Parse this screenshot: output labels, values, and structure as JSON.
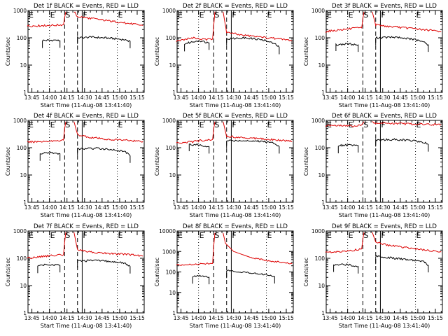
{
  "colors": {
    "events": "#000000",
    "lld": "#dd0000",
    "axes": "#000000",
    "background": "#ffffff"
  },
  "chart_data": [
    {
      "type": "line",
      "title": "Det 1f BLACK = Events, RED = LLD",
      "xlabel": "Start Time (11-Aug-08 13:41:40)",
      "ylabel": "Counts/sec",
      "yscale": "log",
      "ylim": [
        1,
        1000
      ],
      "x_ticks": [
        "13:45",
        "14:00",
        "14:15",
        "14:30",
        "14:45",
        "15:00",
        "15:15"
      ],
      "y_ticks": [
        "1",
        "10",
        "100",
        "1000"
      ],
      "markers": [
        {
          "label": "E"
        },
        {
          "label": "S"
        },
        {
          "label": "F"
        },
        {
          "label": "E"
        }
      ],
      "series": [
        {
          "name": "BLACK = Events",
          "segments": [
            {
              "x": [
                "13:54",
                "14:05",
                "14:09"
              ],
              "y": [
                80,
                82,
                78
              ]
            },
            {
              "x": [
                "14:24",
                "14:36",
                "14:50",
                "15:05",
                "15:09"
              ],
              "y": [
                100,
                105,
                98,
                85,
                75
              ]
            }
          ]
        },
        {
          "name": "RED = LLD",
          "segments": [
            {
              "x": [
                "13:41",
                "13:55",
                "14:05",
                "14:12",
                "14:13",
                "14:14"
              ],
              "y": [
                270,
                280,
                290,
                300,
                600,
                900
              ]
            },
            {
              "x": [
                "14:21",
                "14:24",
                "14:35",
                "14:50",
                "15:05",
                "15:20"
              ],
              "y": [
                900,
                600,
                520,
                420,
                350,
                280
              ]
            }
          ]
        }
      ]
    },
    {
      "type": "line",
      "title": "Det 2f BLACK = Events, RED = LLD",
      "xlabel": "Start Time (11-Aug-08 13:41:40)",
      "ylabel": "Counts/sec",
      "yscale": "log",
      "ylim": [
        1,
        1000
      ],
      "x_ticks": [
        "13:45",
        "14:00",
        "14:15",
        "14:30",
        "14:45",
        "15:00",
        "15:15"
      ],
      "y_ticks": [
        "1",
        "10",
        "100",
        "1000"
      ],
      "markers": [
        {
          "label": "E"
        },
        {
          "label": "S"
        },
        {
          "label": "F"
        },
        {
          "label": "E"
        }
      ],
      "series": [
        {
          "name": "BLACK = Events",
          "segments": [
            {
              "x": [
                "13:48",
                "14:00",
                "14:09"
              ],
              "y": [
                60,
                80,
                65
              ]
            },
            {
              "x": [
                "14:24",
                "14:40",
                "14:55",
                "15:05",
                "15:09"
              ],
              "y": [
                90,
                100,
                85,
                60,
                45
              ]
            }
          ]
        },
        {
          "name": "RED = LLD",
          "segments": [
            {
              "x": [
                "13:41",
                "13:55",
                "14:05",
                "14:12",
                "14:13",
                "14:14"
              ],
              "y": [
                75,
                100,
                85,
                90,
                300,
                900
              ]
            },
            {
              "x": [
                "14:21",
                "14:24",
                "14:35",
                "14:50",
                "15:05",
                "15:20"
              ],
              "y": [
                900,
                160,
                130,
                110,
                95,
                80
              ]
            }
          ]
        }
      ]
    },
    {
      "type": "line",
      "title": "Det 3f BLACK = Events, RED = LLD",
      "xlabel": "Start Time (11-Aug-08 13:41:40)",
      "ylabel": "Counts/sec",
      "yscale": "log",
      "ylim": [
        1,
        1000
      ],
      "x_ticks": [
        "13:45",
        "14:00",
        "14:15",
        "14:30",
        "14:45",
        "15:00",
        "15:15"
      ],
      "y_ticks": [
        "1",
        "10",
        "100",
        "1000"
      ],
      "markers": [
        {
          "label": "E"
        },
        {
          "label": "S"
        },
        {
          "label": "F"
        },
        {
          "label": "E"
        }
      ],
      "series": [
        {
          "name": "BLACK = Events",
          "segments": [
            {
              "x": [
                "13:50",
                "14:00",
                "14:09"
              ],
              "y": [
                55,
                60,
                55
              ]
            },
            {
              "x": [
                "14:24",
                "14:40",
                "14:55",
                "15:05",
                "15:09"
              ],
              "y": [
                100,
                105,
                90,
                70,
                55
              ]
            }
          ]
        },
        {
          "name": "RED = LLD",
          "segments": [
            {
              "x": [
                "13:41",
                "13:55",
                "14:05",
                "14:12",
                "14:13",
                "14:14"
              ],
              "y": [
                170,
                200,
                220,
                230,
                500,
                900
              ]
            },
            {
              "x": [
                "14:21",
                "14:24",
                "14:35",
                "14:50",
                "15:05",
                "15:20"
              ],
              "y": [
                900,
                300,
                260,
                230,
                200,
                170
              ]
            }
          ]
        }
      ]
    },
    {
      "type": "line",
      "title": "Det 4f BLACK = Events, RED = LLD",
      "xlabel": "Start Time (11-Aug-08 13:41:40)",
      "ylabel": "Counts/sec",
      "yscale": "log",
      "ylim": [
        1,
        1000
      ],
      "x_ticks": [
        "13:45",
        "14:00",
        "14:15",
        "14:30",
        "14:45",
        "15:00",
        "15:15"
      ],
      "y_ticks": [
        "1",
        "10",
        "100",
        "1000"
      ],
      "markers": [
        {
          "label": "E"
        },
        {
          "label": "S"
        },
        {
          "label": "F"
        },
        {
          "label": "E"
        }
      ],
      "series": [
        {
          "name": "BLACK = Events",
          "segments": [
            {
              "x": [
                "13:52",
                "14:00",
                "14:09"
              ],
              "y": [
                60,
                65,
                60
              ]
            },
            {
              "x": [
                "14:24",
                "14:40",
                "14:55",
                "15:05",
                "15:09"
              ],
              "y": [
                90,
                95,
                85,
                70,
                50
              ]
            }
          ]
        },
        {
          "name": "RED = LLD",
          "segments": [
            {
              "x": [
                "13:41",
                "13:55",
                "14:05",
                "14:12",
                "14:13",
                "14:14"
              ],
              "y": [
                160,
                170,
                180,
                190,
                500,
                900
              ]
            },
            {
              "x": [
                "14:21",
                "14:24",
                "14:35",
                "14:50",
                "15:05",
                "15:20"
              ],
              "y": [
                900,
                300,
                240,
                200,
                190,
                170
              ]
            }
          ]
        }
      ]
    },
    {
      "type": "line",
      "title": "Det 5f BLACK = Events, RED = LLD",
      "xlabel": "Start Time (11-Aug-08 13:41:40)",
      "ylabel": "Counts/sec",
      "yscale": "log",
      "ylim": [
        1,
        1000
      ],
      "x_ticks": [
        "13:45",
        "14:00",
        "14:15",
        "14:30",
        "14:45",
        "15:00",
        "15:15"
      ],
      "y_ticks": [
        "1",
        "10",
        "100",
        "1000"
      ],
      "markers": [
        {
          "label": "E"
        },
        {
          "label": "S"
        },
        {
          "label": "F"
        },
        {
          "label": "E"
        }
      ],
      "series": [
        {
          "name": "BLACK = Events",
          "segments": [
            {
              "x": [
                "13:52",
                "14:00",
                "14:09"
              ],
              "y": [
                130,
                125,
                110
              ]
            },
            {
              "x": [
                "14:24",
                "14:40",
                "14:55",
                "15:05",
                "15:09"
              ],
              "y": [
                180,
                185,
                170,
                150,
                110
              ]
            }
          ]
        },
        {
          "name": "RED = LLD",
          "segments": [
            {
              "x": [
                "13:41",
                "13:55",
                "14:05",
                "14:12",
                "14:13",
                "14:14"
              ],
              "y": [
                150,
                165,
                190,
                200,
                500,
                900
              ]
            },
            {
              "x": [
                "14:21",
                "14:24",
                "14:35",
                "14:50",
                "15:05",
                "15:20"
              ],
              "y": [
                900,
                260,
                240,
                220,
                200,
                170
              ]
            }
          ]
        }
      ]
    },
    {
      "type": "line",
      "title": "Det 6f BLACK = Events, RED = LLD",
      "xlabel": "Start Time (11-Aug-08 13:41:40)",
      "ylabel": "Counts/sec",
      "yscale": "log",
      "ylim": [
        1,
        1000
      ],
      "x_ticks": [
        "13:45",
        "14:00",
        "14:15",
        "14:30",
        "14:45",
        "15:00",
        "15:15"
      ],
      "y_ticks": [
        "1",
        "10",
        "100",
        "1000"
      ],
      "markers": [
        {
          "label": "E"
        },
        {
          "label": "S"
        },
        {
          "label": "F"
        },
        {
          "label": "E"
        }
      ],
      "series": [
        {
          "name": "BLACK = Events",
          "segments": [
            {
              "x": [
                "13:52",
                "14:00",
                "14:09"
              ],
              "y": [
                120,
                125,
                120
              ]
            },
            {
              "x": [
                "14:24",
                "14:40",
                "14:55",
                "15:05",
                "15:09"
              ],
              "y": [
                190,
                200,
                185,
                160,
                130
              ]
            }
          ]
        },
        {
          "name": "RED = LLD",
          "segments": [
            {
              "x": [
                "13:41",
                "13:55",
                "14:05",
                "14:12",
                "14:13",
                "14:14"
              ],
              "y": [
                650,
                640,
                620,
                650,
                800,
                900
              ]
            },
            {
              "x": [
                "14:21",
                "14:24",
                "14:35",
                "14:50",
                "15:05",
                "15:20"
              ],
              "y": [
                900,
                800,
                780,
                750,
                720,
                700
              ]
            }
          ]
        }
      ]
    },
    {
      "type": "line",
      "title": "Det 7f BLACK = Events, RED = LLD",
      "xlabel": "Start Time (11-Aug-08 13:41:40)",
      "ylabel": "Counts/sec",
      "yscale": "log",
      "ylim": [
        1,
        1000
      ],
      "x_ticks": [
        "13:45",
        "14:00",
        "14:15",
        "14:30",
        "14:45",
        "15:00",
        "15:15"
      ],
      "y_ticks": [
        "1",
        "10",
        "100",
        "1000"
      ],
      "markers": [
        {
          "label": "E"
        },
        {
          "label": "S"
        },
        {
          "label": "F"
        },
        {
          "label": "E"
        }
      ],
      "series": [
        {
          "name": "BLACK = Events",
          "segments": [
            {
              "x": [
                "13:50",
                "14:00",
                "14:09"
              ],
              "y": [
                55,
                60,
                55
              ]
            },
            {
              "x": [
                "14:24",
                "14:40",
                "14:55",
                "15:05",
                "15:09"
              ],
              "y": [
                80,
                82,
                75,
                65,
                50
              ]
            }
          ]
        },
        {
          "name": "RED = LLD",
          "segments": [
            {
              "x": [
                "13:41",
                "13:55",
                "14:05",
                "14:12",
                "14:13",
                "14:14"
              ],
              "y": [
                100,
                120,
                130,
                135,
                400,
                900
              ]
            },
            {
              "x": [
                "14:21",
                "14:24",
                "14:35",
                "14:50",
                "15:05",
                "15:20"
              ],
              "y": [
                900,
                200,
                170,
                150,
                140,
                120
              ]
            }
          ]
        }
      ]
    },
    {
      "type": "line",
      "title": "Det 8f BLACK = Events, RED = LLD",
      "xlabel": "Start Time (11-Aug-08 13:41:40)",
      "ylabel": "Counts/sec",
      "yscale": "log",
      "ylim": [
        1,
        10000
      ],
      "x_ticks": [
        "13:45",
        "14:00",
        "14:15",
        "14:30",
        "14:45",
        "15:00",
        "15:15"
      ],
      "y_ticks": [
        "1",
        "10",
        "100",
        "1000",
        "10000"
      ],
      "markers": [
        {
          "label": "E"
        },
        {
          "label": "S"
        },
        {
          "label": "F"
        },
        {
          "label": "E"
        }
      ],
      "series": [
        {
          "name": "BLACK = Events",
          "segments": [
            {
              "x": [
                "13:55",
                "14:02",
                "14:09"
              ],
              "y": [
                60,
                65,
                55
              ]
            },
            {
              "x": [
                "14:24",
                "14:35",
                "14:50",
                "15:00",
                "15:05"
              ],
              "y": [
                120,
                100,
                85,
                70,
                60
              ]
            }
          ]
        },
        {
          "name": "RED = LLD",
          "segments": [
            {
              "x": [
                "13:41",
                "13:55",
                "14:05",
                "14:12",
                "14:13",
                "14:14"
              ],
              "y": [
                220,
                230,
                250,
                260,
                2000,
                8000
              ]
            },
            {
              "x": [
                "14:21",
                "14:23",
                "14:30",
                "14:45",
                "15:00",
                "15:20"
              ],
              "y": [
                8000,
                2500,
                1000,
                500,
                350,
                250
              ]
            }
          ]
        }
      ]
    },
    {
      "type": "line",
      "title": "Det 9f BLACK = Events, RED = LLD",
      "xlabel": "Start Time (11-Aug-08 13:41:40)",
      "ylabel": "Counts/sec",
      "yscale": "log",
      "ylim": [
        1,
        1000
      ],
      "x_ticks": [
        "13:45",
        "14:00",
        "14:15",
        "14:30",
        "14:45",
        "15:00",
        "15:15"
      ],
      "y_ticks": [
        "1",
        "10",
        "100",
        "1000"
      ],
      "markers": [
        {
          "label": "E"
        },
        {
          "label": "S"
        },
        {
          "label": "F"
        },
        {
          "label": "E"
        }
      ],
      "series": [
        {
          "name": "BLACK = Events",
          "segments": [
            {
              "x": [
                "13:48",
                "14:00",
                "14:09"
              ],
              "y": [
                55,
                60,
                50
              ]
            },
            {
              "x": [
                "14:24",
                "14:40",
                "14:55",
                "15:05",
                "15:09"
              ],
              "y": [
                120,
                100,
                85,
                75,
                55
              ]
            }
          ]
        },
        {
          "name": "RED = LLD",
          "segments": [
            {
              "x": [
                "13:41",
                "13:55",
                "14:05",
                "14:12",
                "14:13",
                "14:14"
              ],
              "y": [
                160,
                180,
                200,
                220,
                500,
                900
              ]
            },
            {
              "x": [
                "14:21",
                "14:24",
                "14:35",
                "14:50",
                "15:05",
                "15:20"
              ],
              "y": [
                900,
                400,
                300,
                250,
                200,
                170
              ]
            }
          ]
        }
      ]
    }
  ]
}
